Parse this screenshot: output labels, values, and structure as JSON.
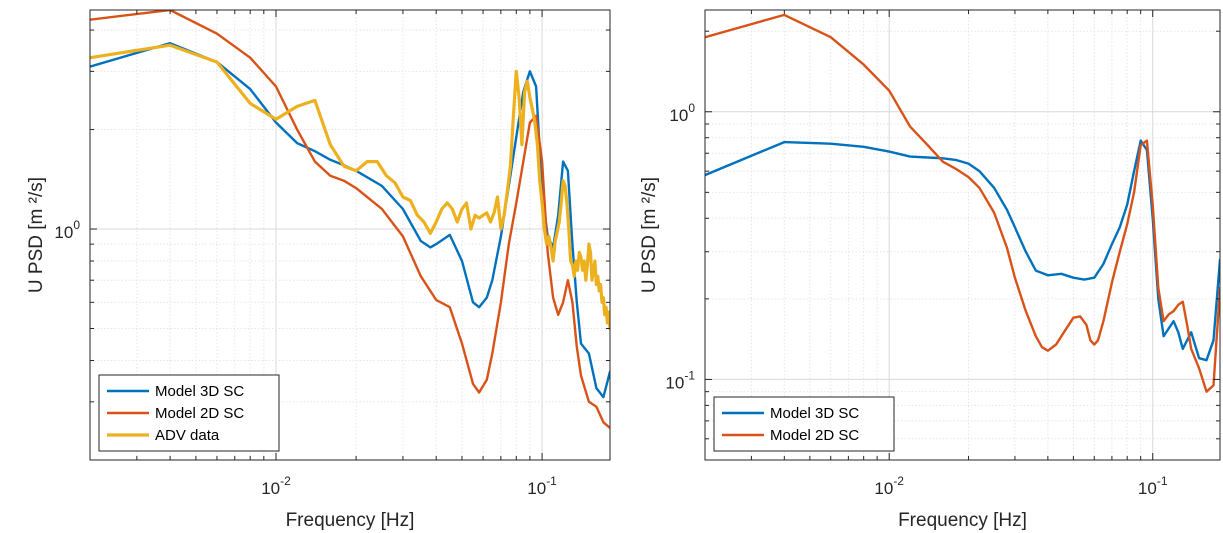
{
  "chart_data": [
    {
      "type": "line",
      "xscale": "log",
      "yscale": "log",
      "xlim": [
        0.002,
        0.18
      ],
      "ylim": [
        0.2,
        4.6
      ],
      "xlabel": "Frequency [Hz]",
      "ylabel": "U PSD [m ²/s]",
      "xticks": [
        {
          "base": "10",
          "exp": "-2",
          "value": 0.01
        },
        {
          "base": "10",
          "exp": "-1",
          "value": 0.1
        }
      ],
      "yticks": [
        {
          "base": "10",
          "exp": "0",
          "value": 1
        }
      ],
      "grid": true,
      "legend": "bottom-left",
      "series": [
        {
          "name": "Model 3D SC",
          "color": "#0072BD",
          "x": [
            0.002,
            0.004,
            0.006,
            0.008,
            0.01,
            0.012,
            0.014,
            0.016,
            0.018,
            0.02,
            0.025,
            0.03,
            0.035,
            0.038,
            0.04,
            0.045,
            0.05,
            0.055,
            0.058,
            0.062,
            0.065,
            0.07,
            0.075,
            0.08,
            0.085,
            0.09,
            0.095,
            0.1,
            0.105,
            0.11,
            0.115,
            0.12,
            0.125,
            0.13,
            0.135,
            0.14,
            0.15,
            0.16,
            0.17,
            0.18
          ],
          "y": [
            3.1,
            3.65,
            3.2,
            2.65,
            2.1,
            1.82,
            1.72,
            1.62,
            1.56,
            1.5,
            1.35,
            1.15,
            0.92,
            0.88,
            0.9,
            0.96,
            0.8,
            0.6,
            0.58,
            0.62,
            0.7,
            0.95,
            1.35,
            1.9,
            2.6,
            3.0,
            2.7,
            1.3,
            0.95,
            0.88,
            1.1,
            1.6,
            1.5,
            0.9,
            0.6,
            0.45,
            0.42,
            0.33,
            0.31,
            0.37
          ]
        },
        {
          "name": "Model 2D SC",
          "color": "#D95319",
          "x": [
            0.002,
            0.004,
            0.006,
            0.008,
            0.01,
            0.012,
            0.014,
            0.016,
            0.018,
            0.02,
            0.025,
            0.03,
            0.035,
            0.04,
            0.045,
            0.05,
            0.055,
            0.058,
            0.062,
            0.065,
            0.07,
            0.075,
            0.08,
            0.085,
            0.09,
            0.095,
            0.1,
            0.105,
            0.11,
            0.115,
            0.12,
            0.125,
            0.13,
            0.135,
            0.14,
            0.15,
            0.16,
            0.17,
            0.18
          ],
          "y": [
            4.3,
            4.6,
            3.9,
            3.3,
            2.7,
            2.0,
            1.6,
            1.45,
            1.4,
            1.33,
            1.15,
            0.95,
            0.72,
            0.61,
            0.58,
            0.45,
            0.34,
            0.32,
            0.35,
            0.42,
            0.6,
            0.9,
            1.2,
            1.6,
            2.1,
            2.2,
            1.6,
            0.85,
            0.62,
            0.55,
            0.6,
            0.7,
            0.6,
            0.44,
            0.36,
            0.3,
            0.29,
            0.26,
            0.25
          ]
        },
        {
          "name": "ADV data",
          "color": "#EDB120",
          "x": [
            0.002,
            0.004,
            0.006,
            0.008,
            0.01,
            0.012,
            0.014,
            0.016,
            0.018,
            0.02,
            0.022,
            0.024,
            0.026,
            0.028,
            0.03,
            0.032,
            0.034,
            0.036,
            0.038,
            0.04,
            0.042,
            0.044,
            0.046,
            0.048,
            0.05,
            0.052,
            0.054,
            0.056,
            0.058,
            0.06,
            0.062,
            0.064,
            0.066,
            0.068,
            0.07,
            0.072,
            0.074,
            0.076,
            0.078,
            0.08,
            0.082,
            0.084,
            0.086,
            0.088,
            0.09,
            0.092,
            0.094,
            0.096,
            0.098,
            0.1,
            0.102,
            0.104,
            0.106,
            0.108,
            0.11,
            0.112,
            0.114,
            0.116,
            0.118,
            0.12,
            0.122,
            0.124,
            0.126,
            0.128,
            0.13,
            0.132,
            0.134,
            0.136,
            0.138,
            0.14,
            0.142,
            0.144,
            0.146,
            0.148,
            0.15,
            0.152,
            0.154,
            0.156,
            0.158,
            0.16,
            0.162,
            0.164,
            0.166,
            0.168,
            0.17,
            0.172,
            0.174,
            0.176,
            0.178,
            0.18
          ],
          "y": [
            3.3,
            3.6,
            3.2,
            2.4,
            2.15,
            2.35,
            2.45,
            1.8,
            1.55,
            1.5,
            1.6,
            1.6,
            1.45,
            1.38,
            1.25,
            1.22,
            1.1,
            1.05,
            0.97,
            1.05,
            1.15,
            1.2,
            1.15,
            1.05,
            1.15,
            1.2,
            1.0,
            1.1,
            1.08,
            1.1,
            1.12,
            1.05,
            1.12,
            1.25,
            1.0,
            1.1,
            1.3,
            1.55,
            2.2,
            3.0,
            2.5,
            1.8,
            2.6,
            2.8,
            2.5,
            2.3,
            2.1,
            1.8,
            1.4,
            1.2,
            1.0,
            0.9,
            0.95,
            0.88,
            0.8,
            0.92,
            0.98,
            1.05,
            1.2,
            1.4,
            1.35,
            1.2,
            1.0,
            0.8,
            0.78,
            0.72,
            0.8,
            0.75,
            0.85,
            0.82,
            0.75,
            0.8,
            0.7,
            0.78,
            0.9,
            0.85,
            0.7,
            0.75,
            0.8,
            0.68,
            0.72,
            0.65,
            0.68,
            0.6,
            0.62,
            0.55,
            0.58,
            0.52,
            0.56,
            0.5
          ]
        }
      ]
    },
    {
      "type": "line",
      "xscale": "log",
      "yscale": "log",
      "xlim": [
        0.002,
        0.18
      ],
      "ylim": [
        0.05,
        2.4
      ],
      "xlabel": "Frequency [Hz]",
      "ylabel": "U PSD [m ²/s]",
      "xticks": [
        {
          "base": "10",
          "exp": "-2",
          "value": 0.01
        },
        {
          "base": "10",
          "exp": "-1",
          "value": 0.1
        }
      ],
      "yticks": [
        {
          "base": "10",
          "exp": "0",
          "value": 1
        },
        {
          "base": "10",
          "exp": "-1",
          "value": 0.1
        }
      ],
      "grid": true,
      "legend": "bottom-left",
      "series": [
        {
          "name": "Model 3D SC",
          "color": "#0072BD",
          "x": [
            0.002,
            0.004,
            0.006,
            0.008,
            0.01,
            0.012,
            0.014,
            0.016,
            0.018,
            0.02,
            0.022,
            0.025,
            0.028,
            0.03,
            0.033,
            0.036,
            0.04,
            0.045,
            0.05,
            0.055,
            0.06,
            0.065,
            0.07,
            0.075,
            0.08,
            0.085,
            0.09,
            0.095,
            0.1,
            0.105,
            0.11,
            0.115,
            0.12,
            0.125,
            0.13,
            0.135,
            0.14,
            0.15,
            0.16,
            0.17,
            0.18
          ],
          "y": [
            0.58,
            0.77,
            0.76,
            0.74,
            0.71,
            0.68,
            0.675,
            0.67,
            0.66,
            0.64,
            0.6,
            0.52,
            0.43,
            0.37,
            0.3,
            0.255,
            0.245,
            0.248,
            0.24,
            0.236,
            0.24,
            0.27,
            0.32,
            0.37,
            0.45,
            0.6,
            0.78,
            0.72,
            0.4,
            0.2,
            0.145,
            0.155,
            0.165,
            0.15,
            0.13,
            0.14,
            0.15,
            0.12,
            0.118,
            0.14,
            0.28
          ]
        },
        {
          "name": "Model 2D SC",
          "color": "#D95319",
          "x": [
            0.002,
            0.004,
            0.006,
            0.008,
            0.01,
            0.012,
            0.014,
            0.016,
            0.018,
            0.02,
            0.022,
            0.025,
            0.028,
            0.03,
            0.033,
            0.036,
            0.038,
            0.04,
            0.043,
            0.046,
            0.05,
            0.053,
            0.056,
            0.058,
            0.06,
            0.062,
            0.065,
            0.07,
            0.075,
            0.08,
            0.085,
            0.09,
            0.095,
            0.1,
            0.105,
            0.11,
            0.115,
            0.12,
            0.125,
            0.13,
            0.135,
            0.14,
            0.15,
            0.16,
            0.17,
            0.18
          ],
          "y": [
            1.9,
            2.3,
            1.9,
            1.5,
            1.2,
            0.88,
            0.75,
            0.65,
            0.61,
            0.57,
            0.52,
            0.42,
            0.31,
            0.24,
            0.18,
            0.145,
            0.132,
            0.128,
            0.135,
            0.15,
            0.17,
            0.172,
            0.16,
            0.14,
            0.135,
            0.14,
            0.165,
            0.23,
            0.3,
            0.38,
            0.5,
            0.75,
            0.78,
            0.45,
            0.22,
            0.165,
            0.175,
            0.18,
            0.19,
            0.195,
            0.16,
            0.13,
            0.11,
            0.09,
            0.095,
            0.22
          ]
        }
      ]
    }
  ]
}
